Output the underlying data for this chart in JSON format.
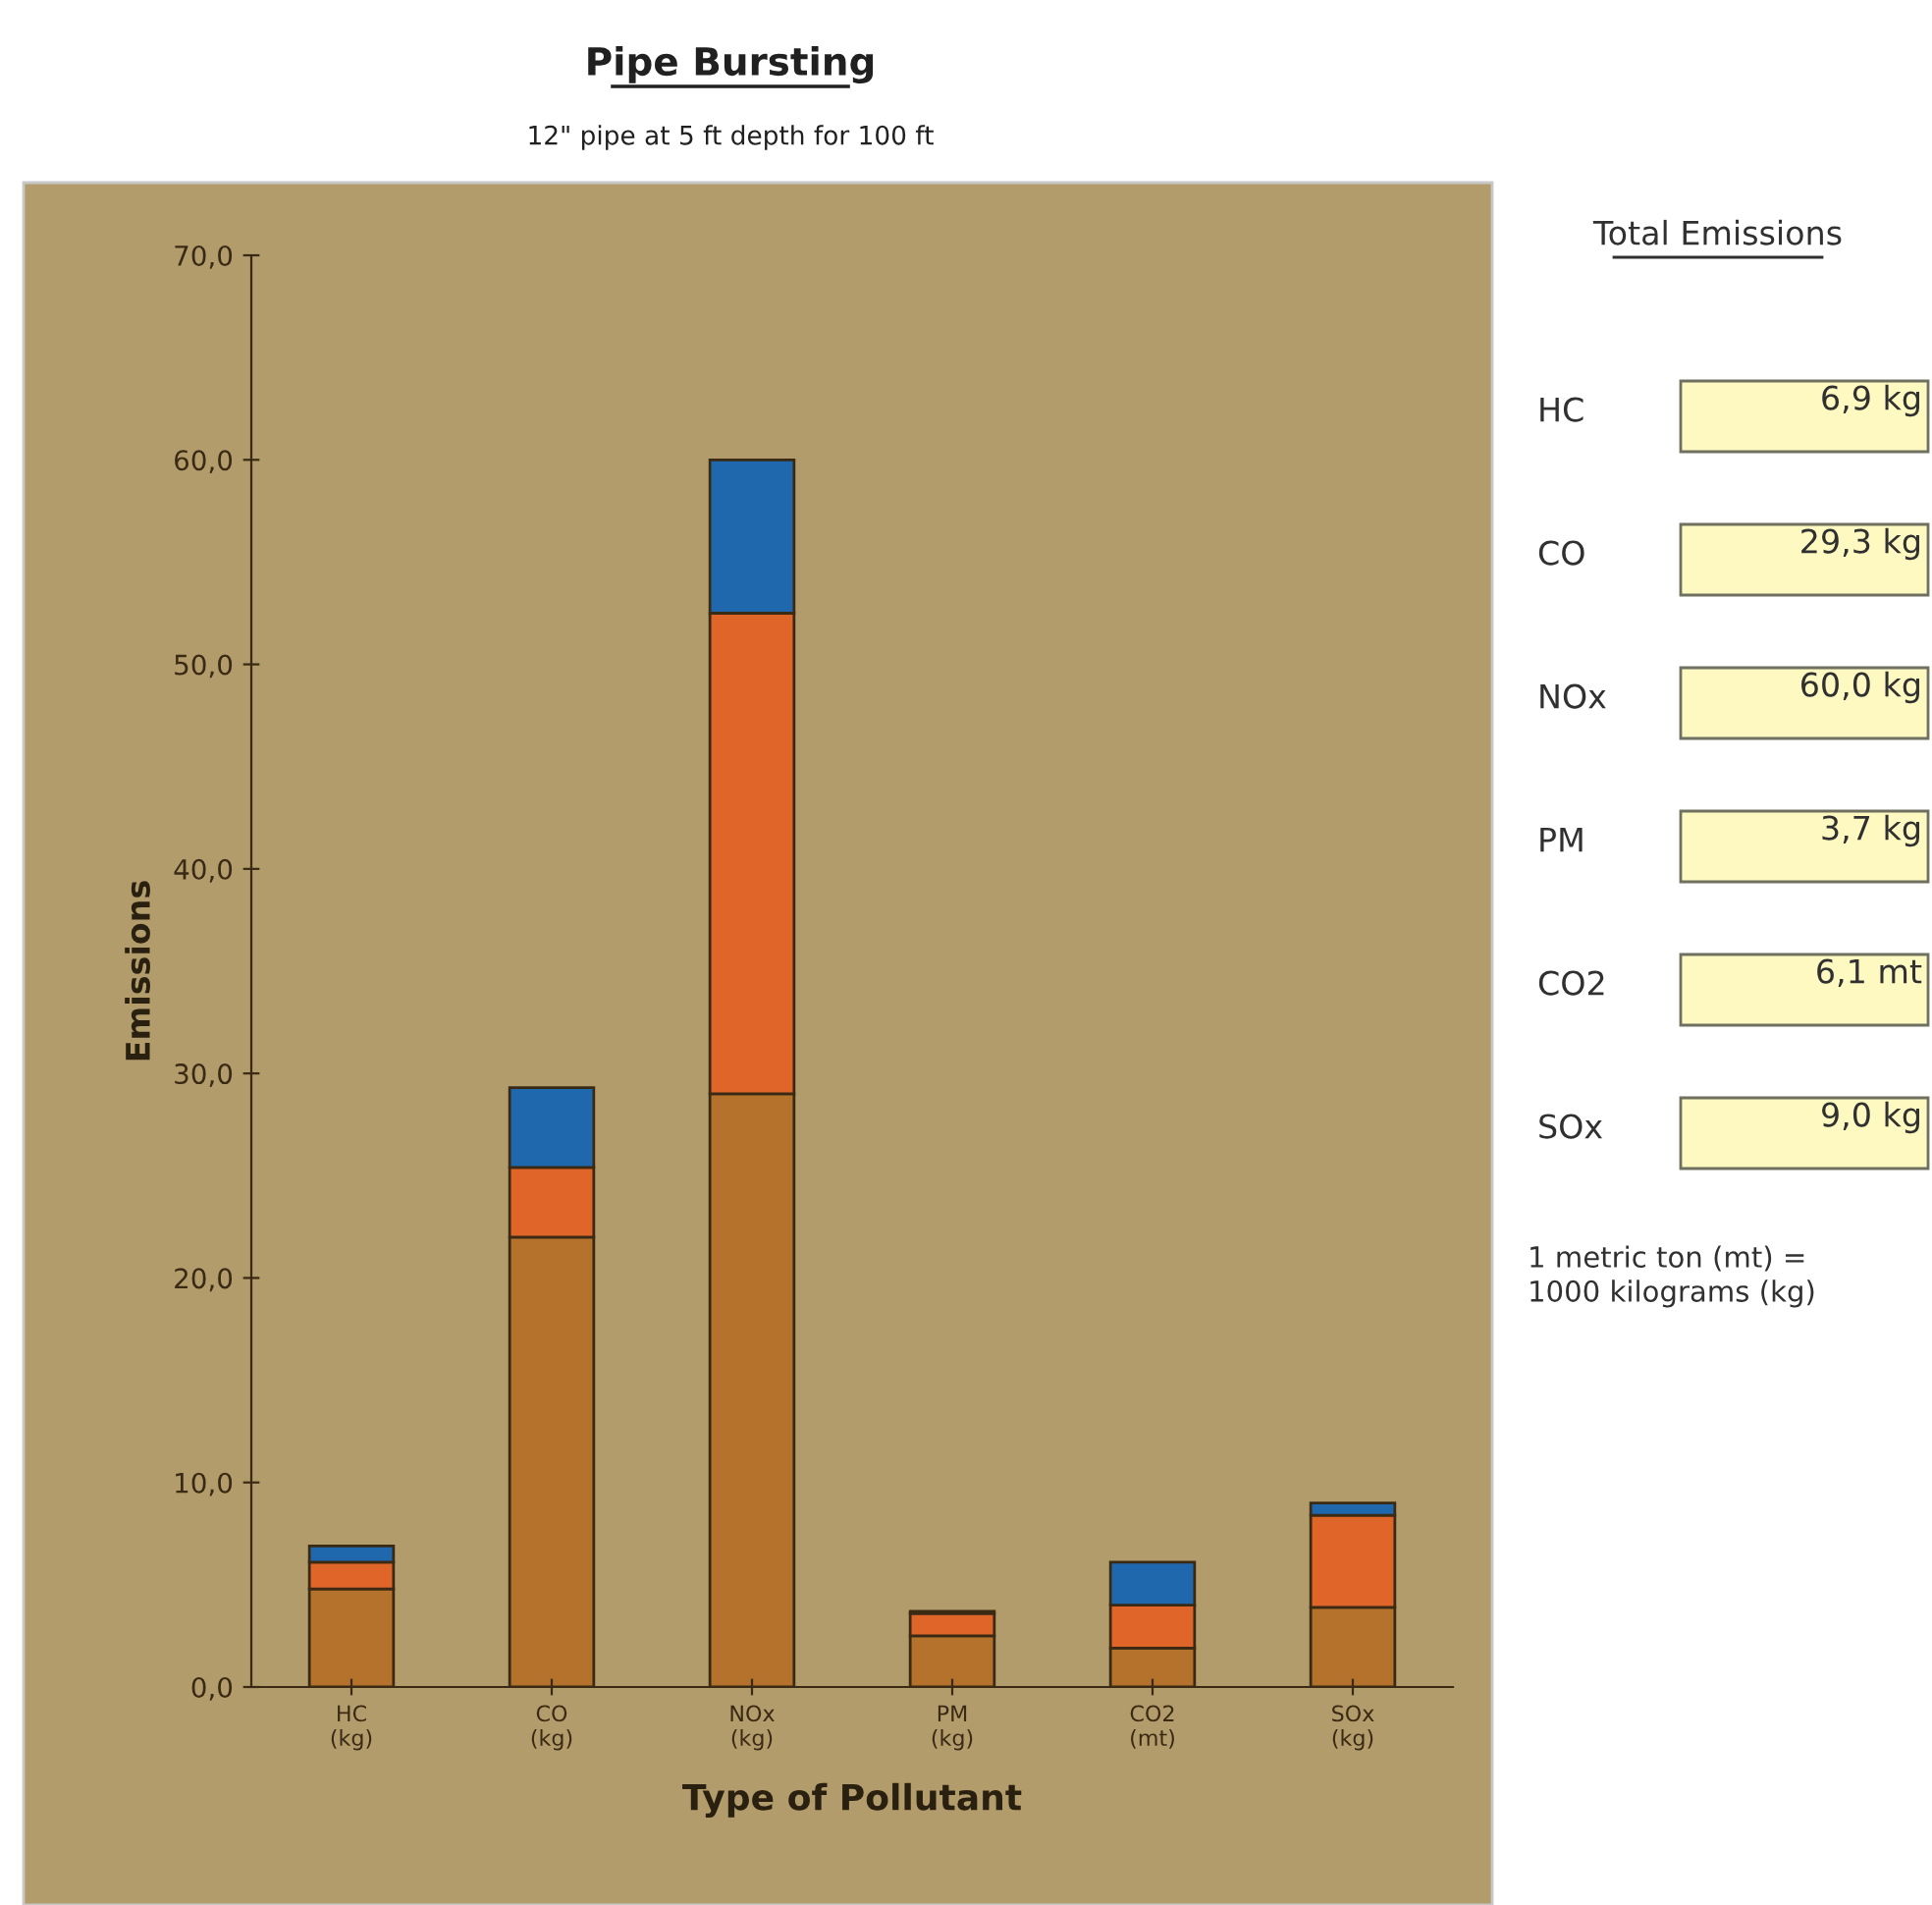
{
  "chart_data": [
    {
      "type": "bar",
      "title": "Pipe Bursting",
      "subtitle": "12\" pipe at 5 ft depth for 100 ft",
      "xlabel": "Type of Pollutant",
      "ylabel": "Emissions",
      "categories": [
        "HC\n(kg)",
        "CO\n(kg)",
        "NOx\n(kg)",
        "PM\n(kg)",
        "CO2\n(mt)",
        "SOx\n(kg)"
      ],
      "stacked": true,
      "series": [
        {
          "color": "#b5722c",
          "values": [
            4.8,
            22.0,
            29.0,
            2.5,
            1.9,
            3.9
          ]
        },
        {
          "color": "#df6529",
          "values": [
            1.3,
            3.4,
            23.5,
            1.1,
            2.1,
            4.5
          ]
        },
        {
          "color": "#1f68ad",
          "values": [
            0.8,
            3.9,
            7.5,
            0.1,
            2.1,
            0.6
          ]
        }
      ],
      "ylim": [
        0,
        70
      ],
      "yticks": [
        {
          "value": 0,
          "label": "0,0"
        },
        {
          "value": 10,
          "label": "10,0"
        },
        {
          "value": 20,
          "label": "20,0"
        },
        {
          "value": 30,
          "label": "30,0"
        },
        {
          "value": 40,
          "label": "40,0"
        },
        {
          "value": 50,
          "label": "50,0"
        },
        {
          "value": 60,
          "label": "60,0"
        },
        {
          "value": 70,
          "label": "70,0"
        }
      ],
      "grid": false,
      "legend": false
    },
    {
      "type": "other",
      "title": "Total Emissions",
      "categories": [
        "HC",
        "CO",
        "NOx",
        "PM",
        "CO2",
        "SOx"
      ],
      "value_labels": [
        "6,9 kg",
        "29,3 kg",
        "60,0 kg",
        "3,7 kg",
        "6,1 mt",
        "9,0 kg"
      ],
      "annotations": [
        "1 metric ton (mt) =\n1000 kilograms (kg)"
      ]
    }
  ]
}
